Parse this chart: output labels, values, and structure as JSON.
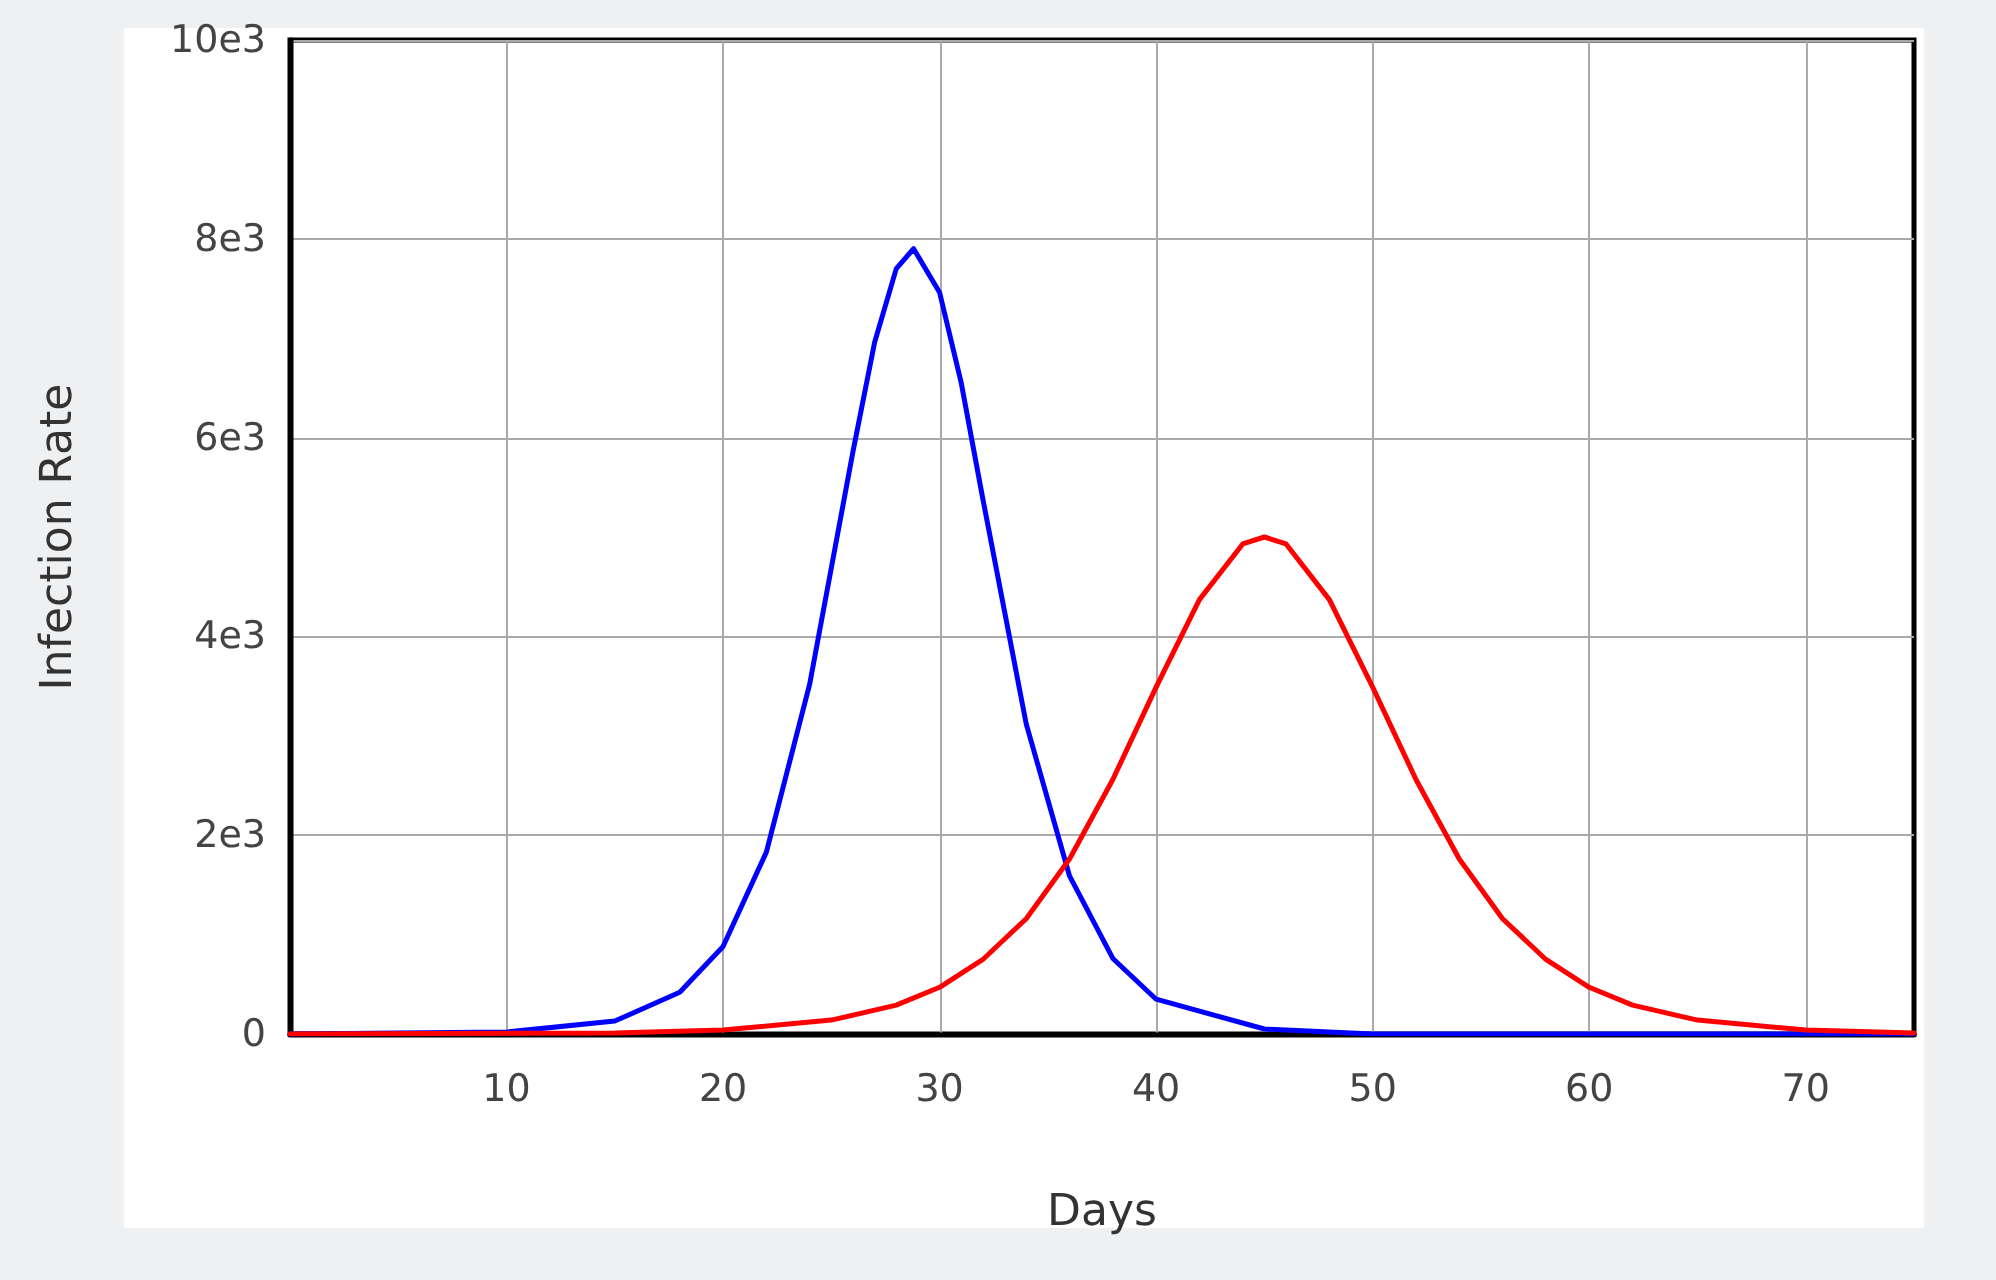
{
  "chart_data": {
    "type": "line",
    "xlabel": "Days",
    "ylabel": "Infection Rate",
    "xlim": [
      0,
      75
    ],
    "xticks": [
      10,
      20,
      30,
      40,
      50,
      60,
      70
    ],
    "ylim": [
      0,
      10000
    ],
    "yticks": [
      {
        "value": 0,
        "label": "0"
      },
      {
        "value": 2000,
        "label": "2e3"
      },
      {
        "value": 4000,
        "label": "4e3"
      },
      {
        "value": 6000,
        "label": "6e3"
      },
      {
        "value": 8000,
        "label": "8e3"
      },
      {
        "value": 10000,
        "label": "10e3"
      }
    ],
    "grid": true,
    "marker": "none",
    "line_style": "solid",
    "series": [
      {
        "color": "#0000ff",
        "x": [
          0,
          10,
          15,
          18,
          20,
          22,
          24,
          26,
          27,
          28,
          28.8,
          30,
          31,
          32,
          34,
          36,
          38,
          40,
          45,
          50,
          75
        ],
        "values": [
          0,
          20,
          130,
          420,
          880,
          1830,
          3520,
          5860,
          6960,
          7700,
          7900,
          7460,
          6550,
          5380,
          3120,
          1590,
          760,
          350,
          50,
          0,
          0
        ]
      },
      {
        "color": "#ff0000",
        "x": [
          0,
          15,
          20,
          25,
          28,
          30,
          32,
          34,
          36,
          38,
          40,
          42,
          44,
          45,
          46,
          48,
          50,
          52,
          54,
          56,
          58,
          60,
          62,
          65,
          70,
          75
        ],
        "values": [
          0,
          10,
          40,
          140,
          290,
          470,
          750,
          1160,
          1760,
          2560,
          3490,
          4370,
          4930,
          5000,
          4930,
          4370,
          3490,
          2560,
          1760,
          1160,
          750,
          470,
          290,
          140,
          40,
          10
        ]
      }
    ]
  }
}
